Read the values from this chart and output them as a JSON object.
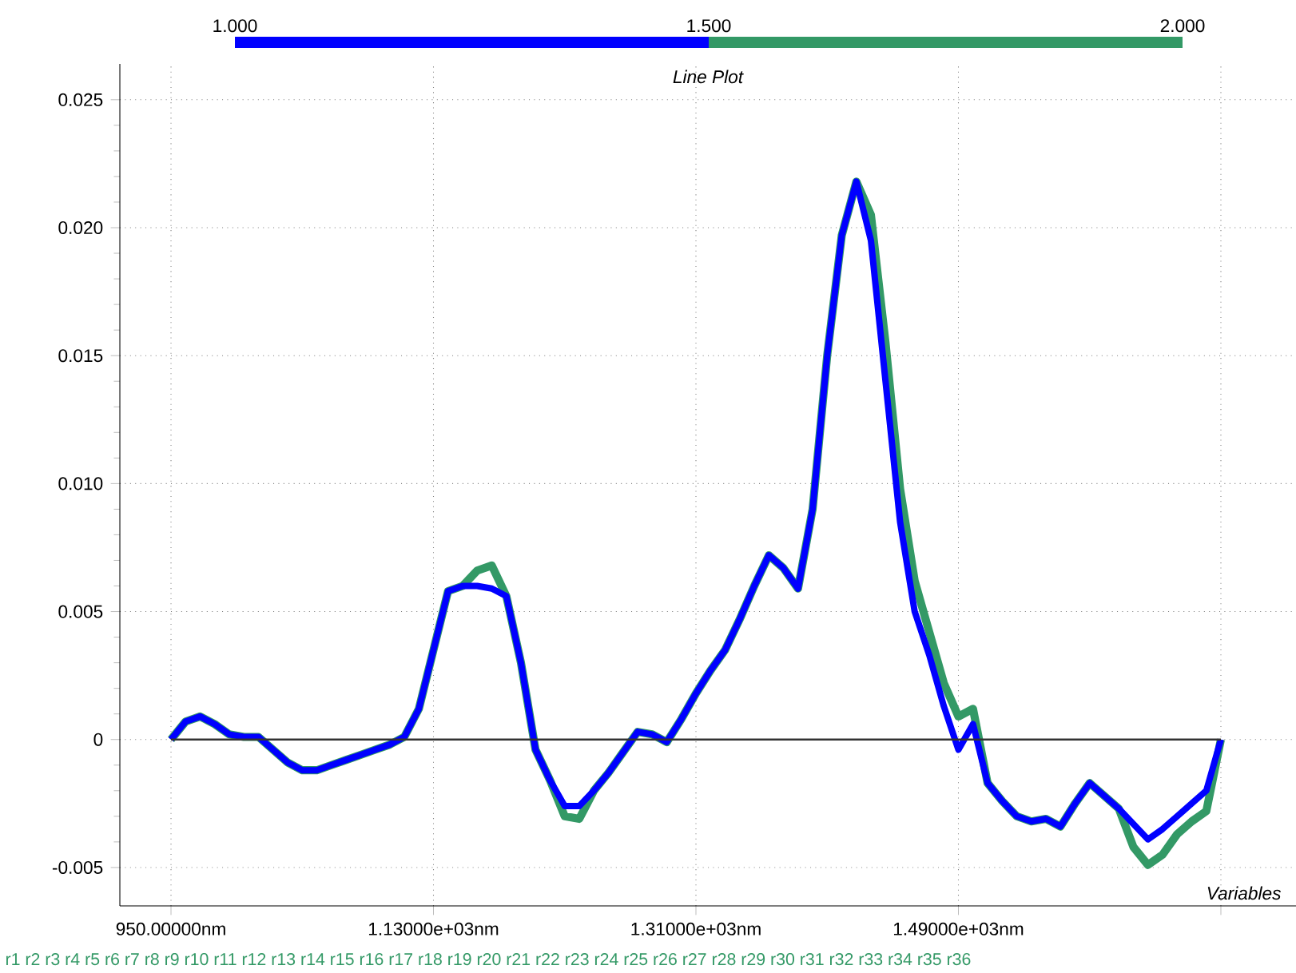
{
  "chart_data": {
    "type": "line",
    "title": "Line Plot",
    "xlabel": "Variables",
    "categories": [
      "950.00000nm",
      null,
      null,
      null,
      null,
      null,
      null,
      null,
      null,
      null,
      null,
      null,
      null,
      null,
      null,
      null,
      null,
      null,
      "1.13000e+03nm",
      null,
      null,
      null,
      null,
      null,
      null,
      null,
      null,
      null,
      null,
      null,
      null,
      null,
      null,
      null,
      null,
      null,
      "1.31000e+03nm",
      null,
      null,
      null,
      null,
      null,
      null,
      null,
      null,
      null,
      null,
      null,
      null,
      null,
      null,
      null,
      null,
      null,
      "1.49000e+03nm",
      null,
      null,
      null,
      null,
      null,
      null,
      null,
      null,
      null,
      null,
      null,
      null,
      null,
      null,
      null,
      null,
      null,
      null
    ],
    "series": [
      {
        "color": "#0000ff",
        "values": [
          0,
          0.0007,
          0.0009,
          0.0006,
          0.0002,
          0.0001,
          0.0001,
          -0.0004,
          -0.0009,
          -0.0012,
          -0.0012,
          -0.001,
          -0.0008,
          -0.0006,
          -0.0004,
          -0.0002,
          0.0001,
          0.0012,
          0.0035,
          0.0058,
          0.006,
          0.006,
          0.0059,
          0.0056,
          0.003,
          -0.0004,
          -0.0016,
          -0.0026,
          -0.0026,
          -0.002,
          -0.0013,
          -0.0005,
          0.0003,
          0.0002,
          -0.0001,
          0.0008,
          0.0018,
          0.0027,
          0.0035,
          0.0047,
          0.006,
          0.0072,
          0.0067,
          0.0059,
          0.009,
          0.015,
          0.0197,
          0.0218,
          0.0195,
          0.014,
          0.0085,
          0.005,
          0.0033,
          0.0013,
          -0.0004,
          0.0006,
          -0.0017,
          -0.0024,
          -0.003,
          -0.0032,
          -0.0031,
          -0.0034,
          -0.0025,
          -0.0017,
          -0.0022,
          -0.0027,
          -0.0033,
          -0.0039,
          -0.0035,
          -0.003,
          -0.0025,
          -0.002,
          0
        ]
      },
      {
        "color": "#339966",
        "values": [
          0,
          0.0007,
          0.0009,
          0.0006,
          0.0002,
          0.0001,
          0.0001,
          -0.0004,
          -0.0009,
          -0.0012,
          -0.0012,
          -0.001,
          -0.0008,
          -0.0006,
          -0.0004,
          -0.0002,
          0.0001,
          0.0012,
          0.0035,
          0.0058,
          0.006,
          0.0066,
          0.0068,
          0.0056,
          0.003,
          -0.0004,
          -0.0016,
          -0.003,
          -0.0031,
          -0.002,
          -0.0013,
          -0.0005,
          0.0003,
          0.0002,
          -0.0001,
          0.0008,
          0.0018,
          0.0027,
          0.0035,
          0.0047,
          0.006,
          0.0072,
          0.0067,
          0.0059,
          0.009,
          0.015,
          0.0197,
          0.0218,
          0.0205,
          0.0155,
          0.0098,
          0.0062,
          0.0042,
          0.0022,
          0.0009,
          0.0012,
          -0.0017,
          -0.0024,
          -0.003,
          -0.0032,
          -0.0031,
          -0.0034,
          -0.0025,
          -0.0017,
          -0.0022,
          -0.0027,
          -0.0042,
          -0.0049,
          -0.0045,
          -0.0037,
          -0.0032,
          -0.0028,
          0
        ]
      }
    ],
    "ylim": [
      -0.0065,
      0.0264
    ],
    "yticks": [
      {
        "value": -0.005,
        "label": "-0.005"
      },
      {
        "value": 0,
        "label": "0"
      },
      {
        "value": 0.005,
        "label": "0.005"
      },
      {
        "value": 0.01,
        "label": "0.010"
      },
      {
        "value": 0.015,
        "label": "0.015"
      },
      {
        "value": 0.02,
        "label": "0.020"
      },
      {
        "value": 0.025,
        "label": "0.025"
      }
    ],
    "grid": true,
    "ref_lines": [
      {
        "axis": "y",
        "value": 0,
        "color": "#333333"
      }
    ],
    "annotations": [
      "1.000",
      "1.500",
      "2.000",
      "r1 r2 r3 r4 r5 r6 r7 r8 r9 r10 r11 r12 r13 r14 r15 r16 r17 r18 r19 r20 r21 r22 r23 r24 r25 r26 r27 r28 r29 r30 r31 r32 r33 r34 r35 r36"
    ]
  }
}
